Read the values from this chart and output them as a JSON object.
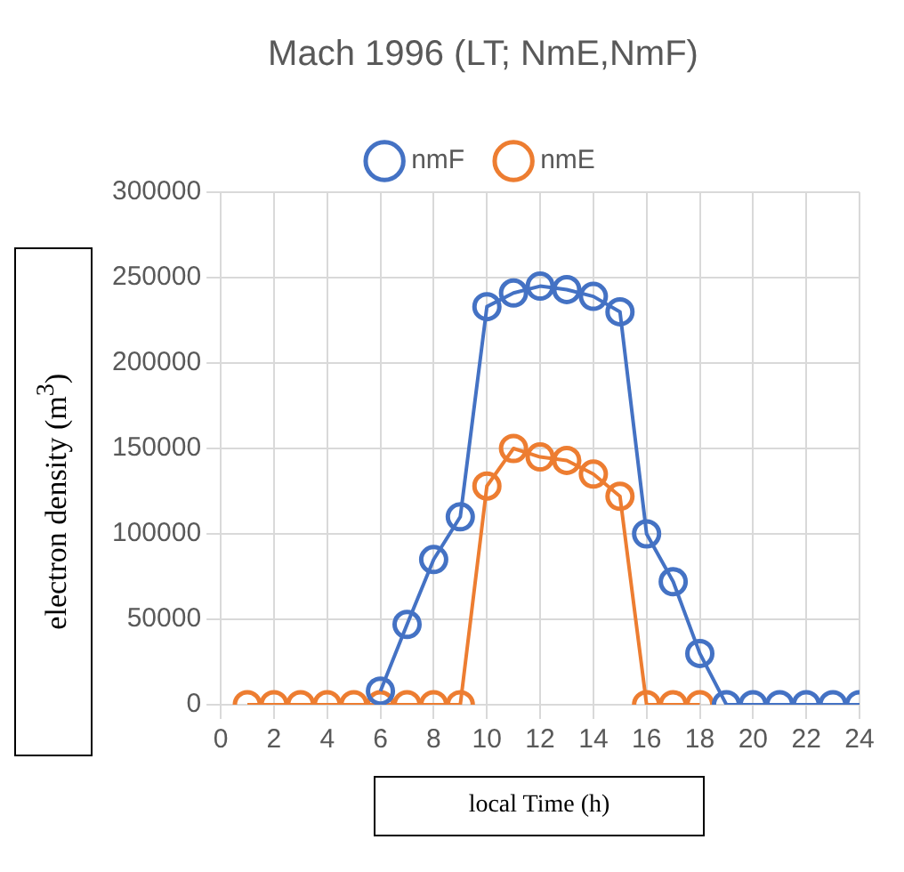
{
  "chart_data": {
    "type": "line",
    "title": "Mach 1996 (LT; NmE,NmF)",
    "xlabel": "local Time (h)",
    "ylabel": "electron density (m$^{3}$)",
    "x": [
      1,
      2,
      3,
      4,
      5,
      6,
      7,
      8,
      9,
      10,
      11,
      12,
      13,
      14,
      15,
      16,
      17,
      18,
      19,
      20,
      21,
      22,
      23,
      24
    ],
    "series": [
      {
        "name": "nmF",
        "color": "#4472c4",
        "values": [
          null,
          null,
          null,
          null,
          null,
          8000,
          47000,
          85000,
          110000,
          233000,
          241000,
          245000,
          243000,
          239000,
          230000,
          100000,
          72000,
          30000,
          0,
          0,
          0,
          0,
          0,
          0
        ]
      },
      {
        "name": "nmE",
        "color": "#ed7d31",
        "values": [
          0,
          0,
          0,
          0,
          0,
          0,
          0,
          0,
          0,
          128000,
          150000,
          145000,
          143000,
          135000,
          122000,
          0,
          0,
          0,
          null,
          null,
          null,
          null,
          null,
          null
        ]
      }
    ],
    "xlim": [
      0,
      24
    ],
    "xticks": [
      0,
      2,
      4,
      6,
      8,
      10,
      12,
      14,
      16,
      18,
      20,
      22,
      24
    ],
    "ylim": [
      0,
      300000
    ],
    "yticks": [
      0,
      50000,
      100000,
      150000,
      200000,
      250000,
      300000
    ],
    "grid": true,
    "legend": "top",
    "marker": "circle",
    "line_style": "solid"
  }
}
